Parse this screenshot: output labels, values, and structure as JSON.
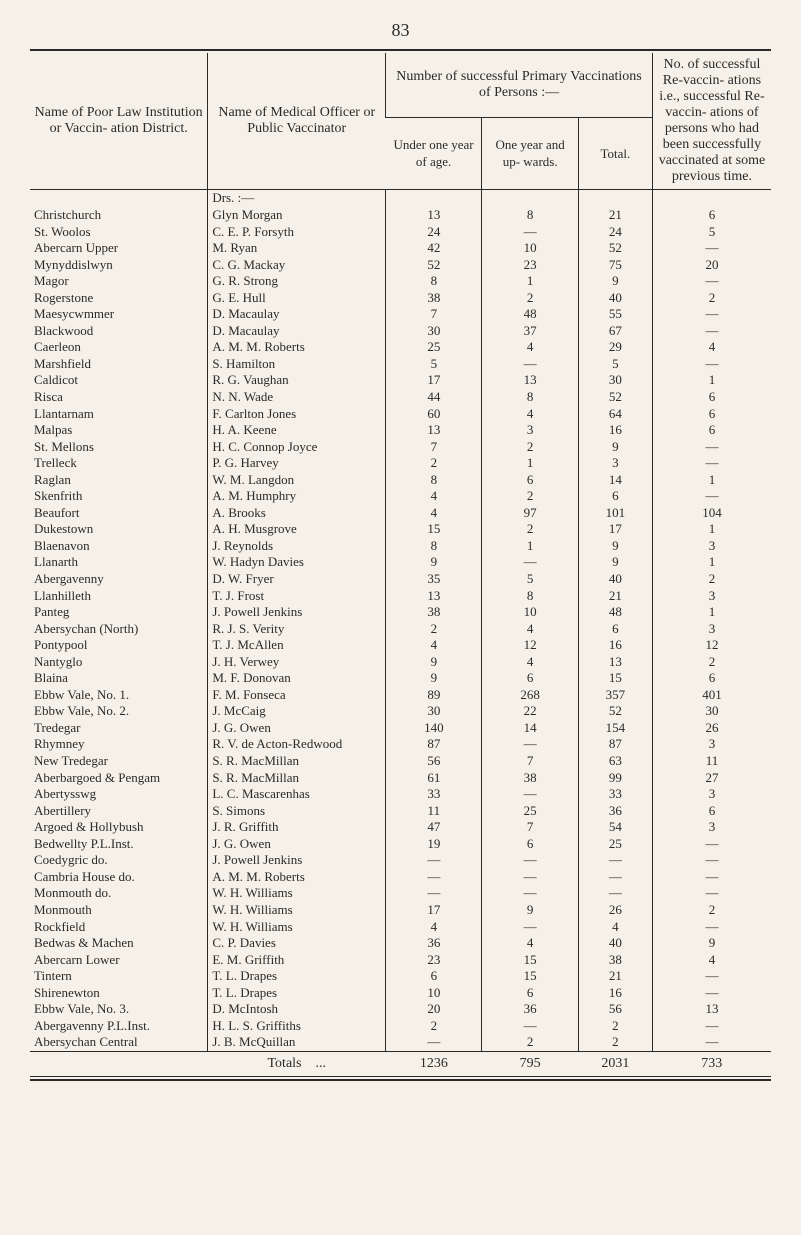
{
  "page_number": "83",
  "headers": {
    "institution": "Name of Poor Law Institution or Vaccin- ation District.",
    "officer": "Name of Medical Officer or Public Vaccinator",
    "group": "Number of successful Primary Vaccinations of Persons :—",
    "under": "Under one year of age.",
    "oneyear": "One year and up- wards.",
    "total": "Total.",
    "revacc": "No. of successful Re-vaccin- ations i.e., successful Re-vaccin- ations of persons who had been successfully vaccinated at some previous time."
  },
  "drs_label": "Drs. :—",
  "totals_label": "Totals",
  "totals": {
    "under": "1236",
    "oneyear": "795",
    "total": "2031",
    "revacc": "733"
  },
  "rows": [
    {
      "inst": "Christchurch",
      "name": "Glyn Morgan",
      "u": "13",
      "o": "8",
      "t": "21",
      "r": "6"
    },
    {
      "inst": "St. Woolos",
      "name": "C. E. P. Forsyth",
      "u": "24",
      "o": "—",
      "t": "24",
      "r": "5"
    },
    {
      "inst": "Abercarn Upper",
      "name": "M. Ryan",
      "u": "42",
      "o": "10",
      "t": "52",
      "r": "—"
    },
    {
      "inst": "Mynyddislwyn",
      "name": "C. G. Mackay",
      "u": "52",
      "o": "23",
      "t": "75",
      "r": "20"
    },
    {
      "inst": "Magor",
      "name": "G. R. Strong",
      "u": "8",
      "o": "1",
      "t": "9",
      "r": "—"
    },
    {
      "inst": "Rogerstone",
      "name": "G. E. Hull",
      "u": "38",
      "o": "2",
      "t": "40",
      "r": "2"
    },
    {
      "inst": "Maesycwmmer",
      "name": "D. Macaulay",
      "u": "7",
      "o": "48",
      "t": "55",
      "r": "—"
    },
    {
      "inst": "Blackwood",
      "name": "D. Macaulay",
      "u": "30",
      "o": "37",
      "t": "67",
      "r": "—"
    },
    {
      "inst": "Caerleon",
      "name": "A. M. M. Roberts",
      "u": "25",
      "o": "4",
      "t": "29",
      "r": "4"
    },
    {
      "inst": "Marshfield",
      "name": "S. Hamilton",
      "u": "5",
      "o": "—",
      "t": "5",
      "r": "—"
    },
    {
      "inst": "Caldicot",
      "name": "R. G. Vaughan",
      "u": "17",
      "o": "13",
      "t": "30",
      "r": "1"
    },
    {
      "inst": "Risca",
      "name": "N. N. Wade",
      "u": "44",
      "o": "8",
      "t": "52",
      "r": "6"
    },
    {
      "inst": "Llantarnam",
      "name": "F. Carlton Jones",
      "u": "60",
      "o": "4",
      "t": "64",
      "r": "6"
    },
    {
      "inst": "Malpas",
      "name": "H. A. Keene",
      "u": "13",
      "o": "3",
      "t": "16",
      "r": "6"
    },
    {
      "inst": "St. Mellons",
      "name": "H. C. Connop Joyce",
      "u": "7",
      "o": "2",
      "t": "9",
      "r": "—"
    },
    {
      "inst": "Trelleck",
      "name": "P. G. Harvey",
      "u": "2",
      "o": "1",
      "t": "3",
      "r": "—"
    },
    {
      "inst": "Raglan",
      "name": "W. M. Langdon",
      "u": "8",
      "o": "6",
      "t": "14",
      "r": "1"
    },
    {
      "inst": "Skenfrith",
      "name": "A. M. Humphry",
      "u": "4",
      "o": "2",
      "t": "6",
      "r": "—"
    },
    {
      "inst": "Beaufort",
      "name": "A. Brooks",
      "u": "4",
      "o": "97",
      "t": "101",
      "r": "104"
    },
    {
      "inst": "Dukestown",
      "name": "A. H. Musgrove",
      "u": "15",
      "o": "2",
      "t": "17",
      "r": "1"
    },
    {
      "inst": "Blaenavon",
      "name": "J. Reynolds",
      "u": "8",
      "o": "1",
      "t": "9",
      "r": "3"
    },
    {
      "inst": "Llanarth",
      "name": "W. Hadyn Davies",
      "u": "9",
      "o": "—",
      "t": "9",
      "r": "1"
    },
    {
      "inst": "Abergavenny",
      "name": "D. W. Fryer",
      "u": "35",
      "o": "5",
      "t": "40",
      "r": "2"
    },
    {
      "inst": "Llanhilleth",
      "name": "T. J. Frost",
      "u": "13",
      "o": "8",
      "t": "21",
      "r": "3"
    },
    {
      "inst": "Panteg",
      "name": "J. Powell Jenkins",
      "u": "38",
      "o": "10",
      "t": "48",
      "r": "1"
    },
    {
      "inst": "Abersychan (North)",
      "name": "R. J. S. Verity",
      "u": "2",
      "o": "4",
      "t": "6",
      "r": "3"
    },
    {
      "inst": "Pontypool",
      "name": "T. J. McAllen",
      "u": "4",
      "o": "12",
      "t": "16",
      "r": "12"
    },
    {
      "inst": "Nantyglo",
      "name": "J. H. Verwey",
      "u": "9",
      "o": "4",
      "t": "13",
      "r": "2"
    },
    {
      "inst": "Blaina",
      "name": "M. F. Donovan",
      "u": "9",
      "o": "6",
      "t": "15",
      "r": "6"
    },
    {
      "inst": "Ebbw Vale, No. 1.",
      "name": "F. M. Fonseca",
      "u": "89",
      "o": "268",
      "t": "357",
      "r": "401"
    },
    {
      "inst": "Ebbw Vale, No. 2.",
      "name": "J. McCaig",
      "u": "30",
      "o": "22",
      "t": "52",
      "r": "30"
    },
    {
      "inst": "Tredegar",
      "name": "J. G. Owen",
      "u": "140",
      "o": "14",
      "t": "154",
      "r": "26"
    },
    {
      "inst": "Rhymney",
      "name": "R. V. de Acton-Redwood",
      "u": "87",
      "o": "—",
      "t": "87",
      "r": "3"
    },
    {
      "inst": "New Tredegar",
      "name": "S. R. MacMillan",
      "u": "56",
      "o": "7",
      "t": "63",
      "r": "11"
    },
    {
      "inst": "Aberbargoed & Pengam",
      "name": "S. R. MacMillan",
      "u": "61",
      "o": "38",
      "t": "99",
      "r": "27"
    },
    {
      "inst": "Abertysswg",
      "name": "L. C. Mascarenhas",
      "u": "33",
      "o": "—",
      "t": "33",
      "r": "3"
    },
    {
      "inst": "Abertillery",
      "name": "S. Simons",
      "u": "11",
      "o": "25",
      "t": "36",
      "r": "6"
    },
    {
      "inst": "Argoed & Hollybush",
      "name": "J. R. Griffith",
      "u": "47",
      "o": "7",
      "t": "54",
      "r": "3"
    },
    {
      "inst": "Bedwellty P.L.Inst.",
      "name": "J. G. Owen",
      "u": "19",
      "o": "6",
      "t": "25",
      "r": "—"
    },
    {
      "inst": "Coedygric        do.",
      "name": "J. Powell Jenkins",
      "u": "—",
      "o": "—",
      "t": "—",
      "r": "—"
    },
    {
      "inst": "Cambria House do.",
      "name": "A. M. M. Roberts",
      "u": "—",
      "o": "—",
      "t": "—",
      "r": "—"
    },
    {
      "inst": "Monmouth        do.",
      "name": "W. H. Williams",
      "u": "—",
      "o": "—",
      "t": "—",
      "r": "—"
    },
    {
      "inst": "Monmouth",
      "name": "W. H. Williams",
      "u": "17",
      "o": "9",
      "t": "26",
      "r": "2"
    },
    {
      "inst": "Rockfield",
      "name": "W. H. Williams",
      "u": "4",
      "o": "—",
      "t": "4",
      "r": "—"
    },
    {
      "inst": "Bedwas & Machen",
      "name": "C. P. Davies",
      "u": "36",
      "o": "4",
      "t": "40",
      "r": "9"
    },
    {
      "inst": "Abercarn Lower",
      "name": "E. M. Griffith",
      "u": "23",
      "o": "15",
      "t": "38",
      "r": "4"
    },
    {
      "inst": "Tintern",
      "name": "T. L. Drapes",
      "u": "6",
      "o": "15",
      "t": "21",
      "r": "—"
    },
    {
      "inst": "Shirenewton",
      "name": "T. L. Drapes",
      "u": "10",
      "o": "6",
      "t": "16",
      "r": "—"
    },
    {
      "inst": "Ebbw Vale, No. 3.",
      "name": "D. McIntosh",
      "u": "20",
      "o": "36",
      "t": "56",
      "r": "13"
    },
    {
      "inst": "Abergavenny P.L.Inst.",
      "name": "H. L. S. Griffiths",
      "u": "2",
      "o": "—",
      "t": "2",
      "r": "—"
    },
    {
      "inst": "Abersychan Central",
      "name": "J. B. McQuillan",
      "u": "—",
      "o": "2",
      "t": "2",
      "r": "—"
    }
  ]
}
